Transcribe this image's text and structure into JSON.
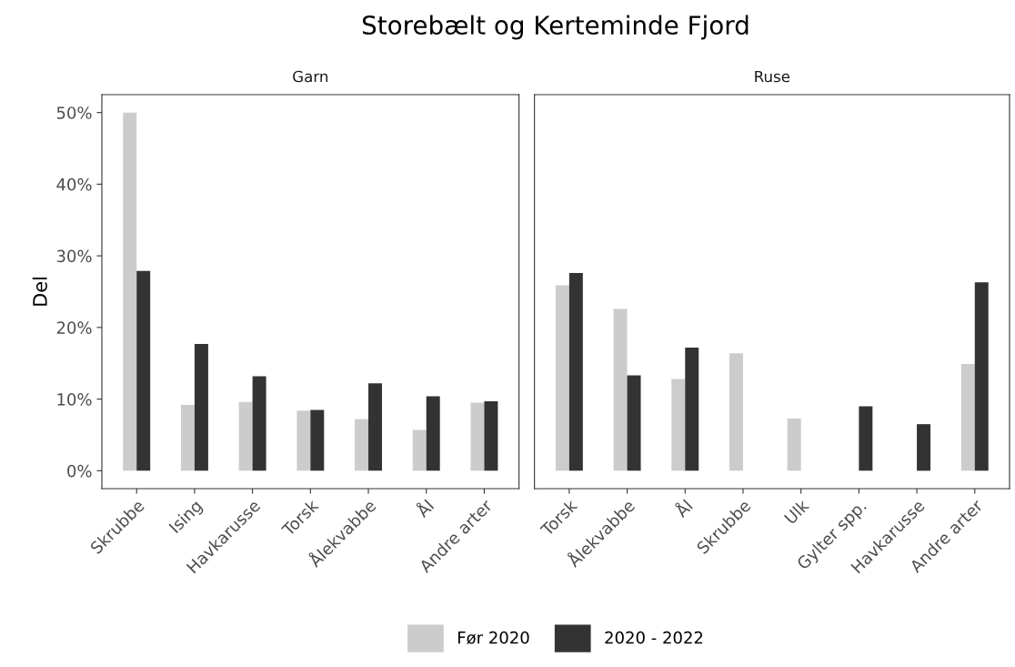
{
  "chart_data": [
    {
      "type": "bar",
      "title": "Storebælt og Kerteminde Fjord",
      "subtitle": "Garn",
      "ylabel": "Del",
      "categories": [
        "Skrubbe",
        "Ising",
        "Havkarusse",
        "Torsk",
        "Ålekvabbe",
        "Ål",
        "Andre arter"
      ],
      "series": [
        {
          "name": "Før 2020",
          "color": "#cccccc",
          "values": [
            50,
            9.2,
            9.6,
            8.4,
            7.2,
            5.7,
            9.5
          ]
        },
        {
          "name": "2020 - 2022",
          "color": "#333333",
          "values": [
            27.9,
            17.7,
            13.2,
            8.5,
            12.2,
            10.4,
            9.7
          ]
        }
      ],
      "ylim": [
        -2.5,
        52.5
      ],
      "yticks": [
        {
          "value": 0,
          "label": "0%"
        },
        {
          "value": 10,
          "label": "10%"
        },
        {
          "value": 20,
          "label": "20%"
        },
        {
          "value": 30,
          "label": "30%"
        },
        {
          "value": 40,
          "label": "40%"
        },
        {
          "value": 50,
          "label": "50%"
        }
      ],
      "legend": "bottom"
    },
    {
      "type": "bar",
      "subtitle": "Ruse",
      "categories": [
        "Torsk",
        "Ålekvabbe",
        "Ål",
        "Skrubbe",
        "Ulk",
        "Gylter spp.",
        "Havkarusse",
        "Andre arter"
      ],
      "series": [
        {
          "color": "#cccccc",
          "values": [
            25.9,
            22.6,
            12.8,
            16.4,
            7.3,
            null,
            null,
            14.9
          ]
        },
        {
          "color": "#333333",
          "values": [
            27.6,
            13.3,
            17.2,
            null,
            null,
            9.0,
            6.5,
            26.3
          ]
        }
      ],
      "ylim": [
        -2.5,
        52.5
      ],
      "tick_labels": "x"
    }
  ]
}
